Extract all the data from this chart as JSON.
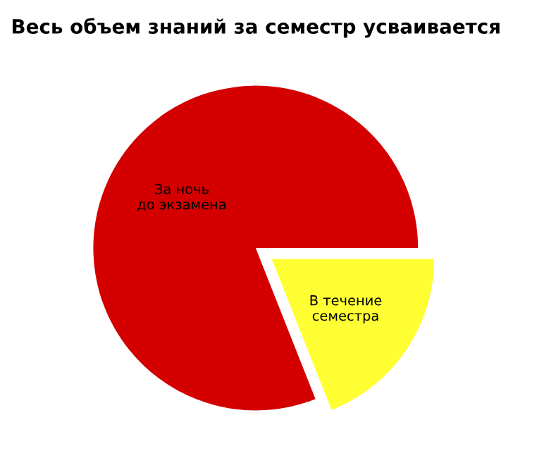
{
  "chart_data": {
    "type": "pie",
    "title": "Весь объем знаний за семестр усваивается",
    "categories": [
      "За ночь\nдо экзамена",
      "В течение\nсеместра"
    ],
    "values": [
      81,
      19
    ],
    "colors": [
      "#d40000",
      "#ffff33"
    ]
  }
}
